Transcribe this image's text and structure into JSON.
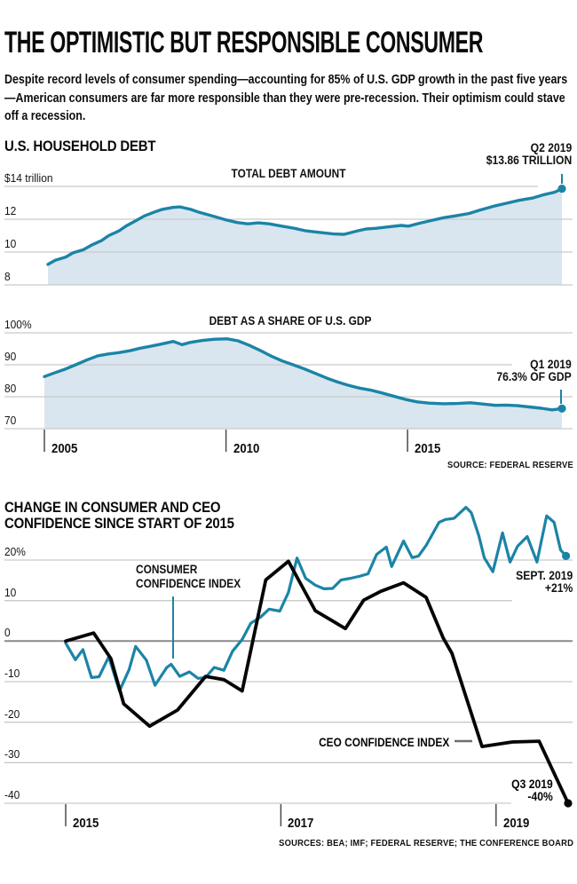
{
  "page": {
    "title": "THE OPTIMISTIC BUT RESPONSIBLE CONSUMER",
    "intro": "Despite record levels of consumer spending—accounting for 85% of U.S. GDP growth in the past five years—American consumers are far more responsible than they were pre-recession. Their optimism could stave off a recession."
  },
  "colors": {
    "teal": "#1b84a6",
    "area_fill": "#d9e6ef",
    "grid": "#c9c9c9",
    "zero_line": "#8a8a8a",
    "black_line": "#050505",
    "leader_gray": "#6e6e6e",
    "tick": "#4a4a4a"
  },
  "chart_data": [
    {
      "id": "us-household-debt",
      "type": "area",
      "title": "U.S. HOUSEHOLD DEBT",
      "series_label": "TOTAL DEBT AMOUNT",
      "annotation": {
        "line1": "Q2 2019",
        "line2": "$13.86 TRILLION"
      },
      "xlim": [
        2005,
        2019.5
      ],
      "ylim": [
        8,
        14
      ],
      "y_ticks": [
        {
          "value": 14,
          "label": "$14 trillion"
        },
        {
          "value": 12,
          "label": "12"
        },
        {
          "value": 10,
          "label": "10"
        },
        {
          "value": 8,
          "label": "8"
        }
      ],
      "x_ticks": [],
      "points": [
        [
          2005.1,
          9.25
        ],
        [
          2005.3,
          9.5
        ],
        [
          2005.6,
          9.7
        ],
        [
          2005.8,
          9.95
        ],
        [
          2006.1,
          10.15
        ],
        [
          2006.3,
          10.4
        ],
        [
          2006.6,
          10.7
        ],
        [
          2006.8,
          11.0
        ],
        [
          2007.1,
          11.3
        ],
        [
          2007.3,
          11.6
        ],
        [
          2007.6,
          11.95
        ],
        [
          2007.8,
          12.2
        ],
        [
          2008.1,
          12.45
        ],
        [
          2008.3,
          12.6
        ],
        [
          2008.6,
          12.72
        ],
        [
          2008.8,
          12.75
        ],
        [
          2009.1,
          12.6
        ],
        [
          2009.3,
          12.45
        ],
        [
          2009.7,
          12.2
        ],
        [
          2010.1,
          11.95
        ],
        [
          2010.4,
          11.8
        ],
        [
          2010.7,
          11.72
        ],
        [
          2011.0,
          11.78
        ],
        [
          2011.3,
          11.72
        ],
        [
          2011.6,
          11.6
        ],
        [
          2012.0,
          11.45
        ],
        [
          2012.3,
          11.3
        ],
        [
          2012.7,
          11.2
        ],
        [
          2013.1,
          11.1
        ],
        [
          2013.4,
          11.08
        ],
        [
          2013.8,
          11.3
        ],
        [
          2014.0,
          11.4
        ],
        [
          2014.3,
          11.45
        ],
        [
          2014.7,
          11.55
        ],
        [
          2015.0,
          11.62
        ],
        [
          2015.2,
          11.58
        ],
        [
          2015.5,
          11.75
        ],
        [
          2015.9,
          11.95
        ],
        [
          2016.2,
          12.1
        ],
        [
          2016.5,
          12.2
        ],
        [
          2016.9,
          12.35
        ],
        [
          2017.2,
          12.55
        ],
        [
          2017.6,
          12.8
        ],
        [
          2018.0,
          13.0
        ],
        [
          2018.3,
          13.15
        ],
        [
          2018.7,
          13.3
        ],
        [
          2019.0,
          13.5
        ],
        [
          2019.3,
          13.65
        ],
        [
          2019.5,
          13.86
        ]
      ]
    },
    {
      "id": "debt-share-of-gdp",
      "type": "area",
      "series_label": "DEBT AS A SHARE OF U.S. GDP",
      "annotation": {
        "line1": "Q1 2019",
        "line2": "76.3% OF GDP"
      },
      "source": "SOURCE: FEDERAL RESERVE",
      "xlim": [
        2005,
        2019.25
      ],
      "ylim": [
        70,
        100
      ],
      "y_ticks": [
        {
          "value": 100,
          "label": "100%"
        },
        {
          "value": 90,
          "label": "90"
        },
        {
          "value": 80,
          "label": "80"
        },
        {
          "value": 70,
          "label": "70"
        }
      ],
      "x_ticks": [
        {
          "value": 2005,
          "label": "2005"
        },
        {
          "value": 2010,
          "label": "2010"
        },
        {
          "value": 2015,
          "label": "2015"
        }
      ],
      "points": [
        [
          2005.0,
          86.3
        ],
        [
          2005.24,
          87.3
        ],
        [
          2005.54,
          88.5
        ],
        [
          2005.86,
          90
        ],
        [
          2006.17,
          91.5
        ],
        [
          2006.47,
          92.8
        ],
        [
          2006.76,
          93.4
        ],
        [
          2007.05,
          93.8
        ],
        [
          2007.35,
          94.4
        ],
        [
          2007.64,
          95.2
        ],
        [
          2007.93,
          95.8
        ],
        [
          2008.23,
          96.5
        ],
        [
          2008.55,
          97.3
        ],
        [
          2008.79,
          96.3
        ],
        [
          2009.01,
          97
        ],
        [
          2009.35,
          97.6
        ],
        [
          2009.69,
          98
        ],
        [
          2010.04,
          98.1
        ],
        [
          2010.33,
          97.5
        ],
        [
          2010.62,
          96.2
        ],
        [
          2010.92,
          94.6
        ],
        [
          2011.23,
          92.8
        ],
        [
          2011.55,
          91.2
        ],
        [
          2011.85,
          90
        ],
        [
          2012.14,
          88.8
        ],
        [
          2012.46,
          87.3
        ],
        [
          2012.78,
          85.8
        ],
        [
          2013.07,
          84.6
        ],
        [
          2013.36,
          83.6
        ],
        [
          2013.68,
          82.7
        ],
        [
          2013.97,
          82.1
        ],
        [
          2014.29,
          81.2
        ],
        [
          2014.61,
          80.2
        ],
        [
          2014.93,
          79.2
        ],
        [
          2015.27,
          78.4
        ],
        [
          2015.59,
          78
        ],
        [
          2016.0,
          77.8
        ],
        [
          2016.37,
          77.9
        ],
        [
          2016.73,
          78.1
        ],
        [
          2017.1,
          77.7
        ],
        [
          2017.42,
          77.3
        ],
        [
          2017.71,
          77.4
        ],
        [
          2018.03,
          77.2
        ],
        [
          2018.35,
          76.8
        ],
        [
          2018.69,
          76.4
        ],
        [
          2018.98,
          75.9
        ],
        [
          2019.25,
          76.3
        ]
      ]
    },
    {
      "id": "confidence-change",
      "type": "line",
      "title_line1": "CHANGE IN CONSUMER AND CEO",
      "title_line2": "CONFIDENCE SINCE START OF 2015",
      "sources": "SOURCES: BEA; IMF; FEDERAL RESERVE; THE CONFERENCE BOARD",
      "xlim": [
        2015,
        2019.67
      ],
      "ylim": [
        -40,
        20
      ],
      "y_ticks": [
        {
          "value": 20,
          "label": "20%"
        },
        {
          "value": 10,
          "label": "10"
        },
        {
          "value": 0,
          "label": "0"
        },
        {
          "value": -10,
          "label": "-10"
        },
        {
          "value": -20,
          "label": "-20"
        },
        {
          "value": -30,
          "label": "-30"
        },
        {
          "value": -40,
          "label": "-40"
        }
      ],
      "x_ticks": [
        {
          "value": 2015,
          "label": "2015"
        },
        {
          "value": 2017,
          "label": "2017"
        },
        {
          "value": 2019,
          "label": "2019"
        }
      ],
      "series": [
        {
          "name": "consumer-confidence-index",
          "label_line1": "CONSUMER",
          "label_line2": "CONFIDENCE INDEX",
          "annotation": {
            "line1": "SEPT. 2019",
            "line2": "+21%"
          },
          "color_key": "teal",
          "points": [
            [
              2015.0,
              -0.5
            ],
            [
              2015.09,
              -4.6
            ],
            [
              2015.16,
              -2.1
            ],
            [
              2015.24,
              -9
            ],
            [
              2015.31,
              -8.8
            ],
            [
              2015.4,
              -3.9
            ],
            [
              2015.5,
              -12.3
            ],
            [
              2015.59,
              -7
            ],
            [
              2015.65,
              -1.3
            ],
            [
              2015.75,
              -4.7
            ],
            [
              2015.83,
              -10.9
            ],
            [
              2015.94,
              -6.5
            ],
            [
              2015.98,
              -5.7
            ],
            [
              2016.06,
              -8.7
            ],
            [
              2016.15,
              -7.6
            ],
            [
              2016.23,
              -9.2
            ],
            [
              2016.3,
              -9
            ],
            [
              2016.38,
              -6.5
            ],
            [
              2016.47,
              -7.2
            ],
            [
              2016.55,
              -2.5
            ],
            [
              2016.64,
              0.4
            ],
            [
              2016.72,
              4.4
            ],
            [
              2016.81,
              5.9
            ],
            [
              2016.89,
              7.9
            ],
            [
              2016.99,
              7.4
            ],
            [
              2017.07,
              12
            ],
            [
              2017.15,
              20.5
            ],
            [
              2017.23,
              15.5
            ],
            [
              2017.32,
              13.8
            ],
            [
              2017.4,
              12.9
            ],
            [
              2017.48,
              13
            ],
            [
              2017.56,
              15.1
            ],
            [
              2017.65,
              15.5
            ],
            [
              2017.73,
              16
            ],
            [
              2017.81,
              16.6
            ],
            [
              2017.89,
              21.4
            ],
            [
              2017.98,
              23.2
            ],
            [
              2018.03,
              18.4
            ],
            [
              2018.14,
              24.7
            ],
            [
              2018.22,
              20.6
            ],
            [
              2018.28,
              21
            ],
            [
              2018.35,
              23.6
            ],
            [
              2018.47,
              29.3
            ],
            [
              2018.53,
              30
            ],
            [
              2018.61,
              30.3
            ],
            [
              2018.72,
              33
            ],
            [
              2018.77,
              31.7
            ],
            [
              2018.84,
              26
            ],
            [
              2018.89,
              20.6
            ],
            [
              2018.97,
              17.1
            ],
            [
              2019.06,
              26.7
            ],
            [
              2019.13,
              19.5
            ],
            [
              2019.2,
              23.4
            ],
            [
              2019.29,
              25.8
            ],
            [
              2019.38,
              19.5
            ],
            [
              2019.47,
              30.9
            ],
            [
              2019.54,
              29.3
            ],
            [
              2019.6,
              22.5
            ],
            [
              2019.65,
              21
            ]
          ]
        },
        {
          "name": "ceo-confidence-index",
          "label": "CEO CONFIDENCE INDEX",
          "annotation": {
            "line1": "Q3 2019",
            "line2": "-40%"
          },
          "color_key": "black",
          "points": [
            [
              2015.0,
              0
            ],
            [
              2015.26,
              2
            ],
            [
              2015.42,
              -4.3
            ],
            [
              2015.54,
              -15.5
            ],
            [
              2015.78,
              -21
            ],
            [
              2016.04,
              -17
            ],
            [
              2016.3,
              -8.7
            ],
            [
              2016.47,
              -9.5
            ],
            [
              2016.64,
              -12.3
            ],
            [
              2016.86,
              15.1
            ],
            [
              2017.07,
              19.7
            ],
            [
              2017.32,
              7.5
            ],
            [
              2017.6,
              3.1
            ],
            [
              2017.77,
              10.1
            ],
            [
              2017.93,
              12.3
            ],
            [
              2018.14,
              14.4
            ],
            [
              2018.35,
              10.8
            ],
            [
              2018.51,
              0.7
            ],
            [
              2018.59,
              -3
            ],
            [
              2018.87,
              -26
            ],
            [
              2019.15,
              -24.9
            ],
            [
              2019.4,
              -24.7
            ],
            [
              2019.67,
              -40
            ]
          ]
        }
      ]
    }
  ]
}
